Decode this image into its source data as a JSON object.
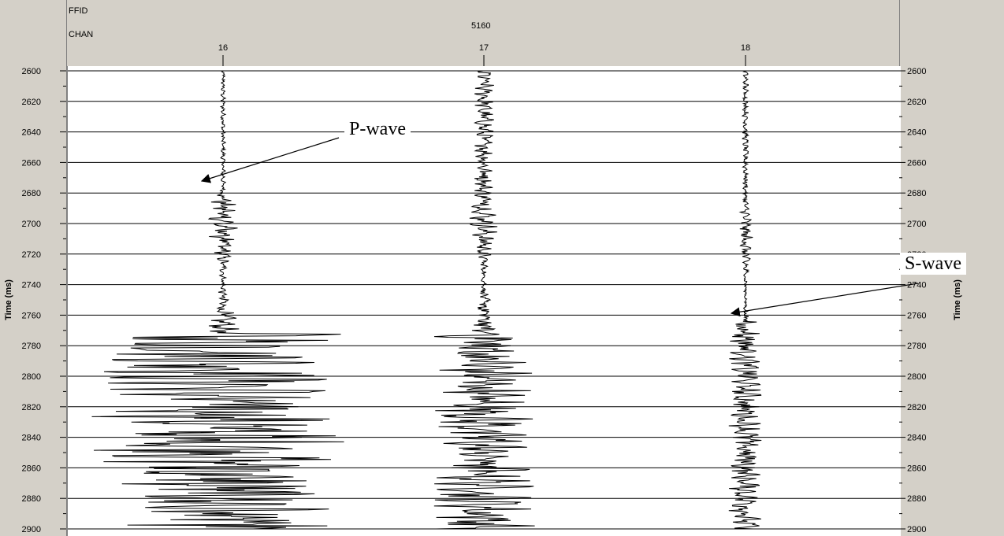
{
  "header": {
    "ffid_label": "FFID",
    "chan_label": "CHAN",
    "ffid_value": "5160"
  },
  "annotations": {
    "p_wave": "P-wave",
    "s_wave": "S-wave"
  },
  "chart_data": {
    "type": "line",
    "title": "",
    "xlabel": "CHAN",
    "ylabel": "Time (ms)",
    "y_axis_right_label": "Time (ms)",
    "ylim": [
      2600,
      2900
    ],
    "y_reversed": true,
    "y_ticks": [
      2600,
      2620,
      2640,
      2660,
      2680,
      2700,
      2720,
      2740,
      2760,
      2780,
      2800,
      2820,
      2840,
      2860,
      2880,
      2900
    ],
    "channels": [
      "16",
      "17",
      "18"
    ],
    "grid": true,
    "annotation_times": {
      "p_wave": 2680,
      "s_wave": 2760
    },
    "series": [
      {
        "name": "16",
        "p_arrival": 2680,
        "s_arrival": 2772,
        "amp_pre": 0.4,
        "amp_p": 2.6,
        "amp_s": 20,
        "clip_left": 210,
        "clip_right": 200
      },
      {
        "name": "17",
        "p_arrival": 2680,
        "s_arrival": 2772,
        "amp_pre": 1.6,
        "amp_p": 2.4,
        "amp_s": 8,
        "clip_left": 120,
        "clip_right": 160
      },
      {
        "name": "18",
        "p_arrival": 2690,
        "s_arrival": 2764,
        "amp_pre": 0.5,
        "amp_p": 1.2,
        "amp_s": 2.6,
        "clip_left": 80,
        "clip_right": 130
      }
    ]
  }
}
